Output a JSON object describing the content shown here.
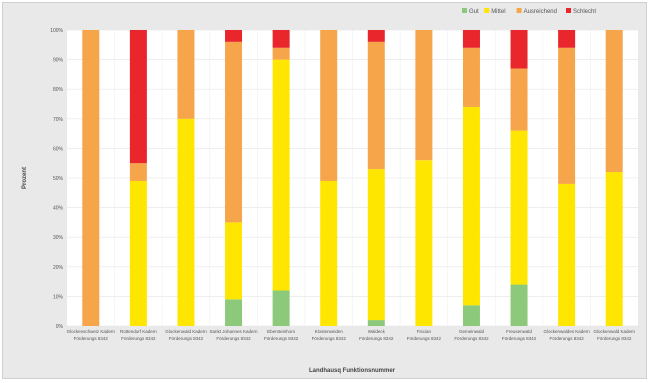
{
  "chart_data": {
    "type": "bar",
    "stacked": true,
    "title": "",
    "xlabel": "Landhausq Funktionsnummer",
    "ylabel": "Prozent",
    "ylim": [
      0,
      100
    ],
    "yticks": [
      "0%",
      "10%",
      "20%",
      "30%",
      "40%",
      "50%",
      "60%",
      "70%",
      "80%",
      "90%",
      "100%"
    ],
    "grid": true,
    "legend_position": "top-right",
    "categories": [
      "Glockenschweiz Kadern | Förderungs 8342",
      "Rottendorf Kadern | Förderungs 8342",
      "Glockenwald Kadern | Förderungs 8342",
      "Sankt Johannes Kadern | Förderungs 8342",
      "Ebersteinhorn | Förderungs 8342",
      "Klosterweiden | Förderungs 8342",
      "Waldeck | Förderungs 8342",
      "Fiscian | Förderungs 8342",
      "Gemeinwald | Förderungs 8342",
      "Freusenwald | Förderungs 8342",
      "Glockenwaldes Kadern | Förderungs 8342",
      "Glockenwald Kadern | Förderungs 8342"
    ],
    "series": [
      {
        "name": "Gut",
        "color": "#8cc97a",
        "values": [
          0,
          0,
          0,
          9,
          12,
          0,
          2,
          0,
          7,
          14,
          0,
          0
        ]
      },
      {
        "name": "Mittel",
        "color": "#ffe600",
        "values": [
          0,
          49,
          70,
          26,
          78,
          49,
          51,
          56,
          67,
          52,
          48,
          52
        ]
      },
      {
        "name": "Ausreichend",
        "color": "#f7a54a",
        "values": [
          100,
          6,
          30,
          61,
          4,
          51,
          43,
          44,
          20,
          21,
          46,
          48
        ]
      },
      {
        "name": "Schlecht",
        "color": "#e8262b",
        "values": [
          0,
          45,
          0,
          4,
          6,
          0,
          4,
          0,
          6,
          13,
          6,
          0
        ]
      }
    ]
  }
}
